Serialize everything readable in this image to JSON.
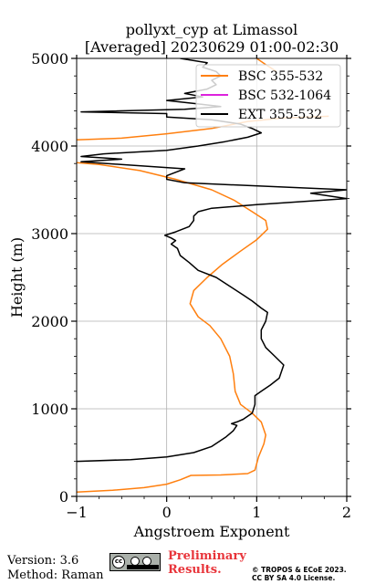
{
  "chart_data": {
    "type": "line",
    "title": "pollyxt_cyp at Limassol",
    "subtitle": "[Averaged] 20230629 01:00-02:30",
    "xlabel": "Angstroem Exponent",
    "ylabel": "Height (m)",
    "xlim": [
      -1,
      2
    ],
    "ylim": [
      0,
      5000
    ],
    "xticks": [
      "−1",
      "0",
      "1",
      "2"
    ],
    "yticks": [
      "0",
      "1000",
      "2000",
      "3000",
      "4000",
      "5000"
    ],
    "grid": true,
    "legend_position": "top-right",
    "series": [
      {
        "name": "BSC 355-532",
        "color": "#ff7f0e",
        "points": [
          [
            -1.0,
            50
          ],
          [
            -0.6,
            70
          ],
          [
            -0.25,
            100
          ],
          [
            0.0,
            140
          ],
          [
            0.15,
            190
          ],
          [
            0.27,
            240
          ],
          [
            0.6,
            245
          ],
          [
            0.9,
            260
          ],
          [
            0.98,
            300
          ],
          [
            1.02,
            450
          ],
          [
            1.08,
            600
          ],
          [
            1.1,
            700
          ],
          [
            1.05,
            850
          ],
          [
            0.95,
            950
          ],
          [
            0.82,
            1050
          ],
          [
            0.76,
            1200
          ],
          [
            0.74,
            1400
          ],
          [
            0.7,
            1600
          ],
          [
            0.6,
            1800
          ],
          [
            0.48,
            1950
          ],
          [
            0.35,
            2050
          ],
          [
            0.26,
            2200
          ],
          [
            0.3,
            2350
          ],
          [
            0.45,
            2500
          ],
          [
            0.62,
            2650
          ],
          [
            0.82,
            2800
          ],
          [
            1.0,
            2930
          ],
          [
            1.12,
            3050
          ],
          [
            1.1,
            3150
          ],
          [
            0.95,
            3250
          ],
          [
            0.75,
            3380
          ],
          [
            0.5,
            3500
          ],
          [
            0.1,
            3620
          ],
          [
            -0.3,
            3720
          ],
          [
            -0.75,
            3790
          ],
          [
            -1.0,
            3810
          ]
        ]
      },
      {
        "name": "BSC 355-532",
        "color": "#ff7f0e",
        "points": [
          [
            -1.0,
            4070
          ],
          [
            -0.5,
            4090
          ],
          [
            0.0,
            4140
          ],
          [
            0.5,
            4200
          ],
          [
            0.9,
            4280
          ],
          [
            1.3,
            4320
          ],
          [
            1.8,
            4340
          ]
        ]
      },
      {
        "name": "BSC 355-532",
        "color": "#ff7f0e",
        "points": [
          [
            1.0,
            5000
          ],
          [
            1.1,
            4930
          ],
          [
            1.22,
            4850
          ]
        ]
      },
      {
        "name": "BSC 532-1064",
        "color": "#dd22dd",
        "points": []
      },
      {
        "name": "EXT 355-532",
        "color": "#000000",
        "points": [
          [
            -1.0,
            400
          ],
          [
            -0.4,
            420
          ],
          [
            0.0,
            450
          ],
          [
            0.3,
            500
          ],
          [
            0.5,
            570
          ],
          [
            0.66,
            680
          ],
          [
            0.74,
            750
          ],
          [
            0.78,
            810
          ],
          [
            0.72,
            830
          ],
          [
            0.78,
            850
          ],
          [
            0.85,
            880
          ],
          [
            0.95,
            950
          ],
          [
            0.98,
            1050
          ],
          [
            0.98,
            1150
          ],
          [
            1.05,
            1200
          ],
          [
            1.15,
            1270
          ],
          [
            1.25,
            1350
          ],
          [
            1.3,
            1500
          ],
          [
            1.2,
            1600
          ],
          [
            1.1,
            1700
          ],
          [
            1.05,
            1800
          ],
          [
            1.05,
            1900
          ],
          [
            1.1,
            2000
          ],
          [
            1.12,
            2100
          ],
          [
            1.05,
            2150
          ],
          [
            0.95,
            2230
          ],
          [
            0.85,
            2300
          ],
          [
            0.7,
            2400
          ],
          [
            0.55,
            2500
          ],
          [
            0.35,
            2580
          ],
          [
            0.25,
            2670
          ],
          [
            0.15,
            2750
          ],
          [
            0.12,
            2830
          ],
          [
            0.05,
            2880
          ],
          [
            0.1,
            2920
          ],
          [
            0.05,
            2950
          ],
          [
            -0.02,
            2980
          ],
          [
            0.1,
            3020
          ],
          [
            0.25,
            3080
          ],
          [
            0.3,
            3150
          ],
          [
            0.3,
            3200
          ],
          [
            0.35,
            3250
          ],
          [
            0.5,
            3290
          ],
          [
            1.0,
            3330
          ],
          [
            2.0,
            3400
          ],
          [
            1.6,
            3460
          ],
          [
            2.0,
            3500
          ],
          [
            0.2,
            3580
          ],
          [
            0.0,
            3620
          ],
          [
            0.0,
            3660
          ],
          [
            0.1,
            3700
          ],
          [
            0.2,
            3740
          ],
          [
            -0.95,
            3820
          ],
          [
            -0.5,
            3850
          ],
          [
            -0.95,
            3880
          ],
          [
            -0.7,
            3910
          ],
          [
            0.0,
            3950
          ],
          [
            0.35,
            4000
          ],
          [
            0.65,
            4050
          ],
          [
            0.9,
            4100
          ],
          [
            1.05,
            4150
          ],
          [
            0.95,
            4200
          ],
          [
            0.82,
            4250
          ],
          [
            0.5,
            4300
          ],
          [
            0.0,
            4330
          ],
          [
            0.0,
            4370
          ],
          [
            -0.95,
            4390
          ],
          [
            0.2,
            4420
          ],
          [
            0.6,
            4450
          ],
          [
            0.35,
            4480
          ],
          [
            0.0,
            4520
          ],
          [
            0.4,
            4560
          ],
          [
            0.2,
            4600
          ],
          [
            0.45,
            4650
          ],
          [
            0.55,
            4700
          ],
          [
            0.5,
            4750
          ],
          [
            0.6,
            4800
          ],
          [
            0.55,
            4850
          ],
          [
            0.4,
            4900
          ],
          [
            0.45,
            4950
          ],
          [
            0.15,
            5000
          ]
        ]
      }
    ]
  },
  "footer": {
    "version": "Version: 3.6",
    "method": "Method: Raman",
    "license_badge": "cc-by-sa-badge",
    "preliminary_line1": "Preliminary",
    "preliminary_line2": "Results.",
    "copyright_line1": "© TROPOS & ECoE 2023.",
    "copyright_line2": "CC BY SA 4.0 License."
  }
}
